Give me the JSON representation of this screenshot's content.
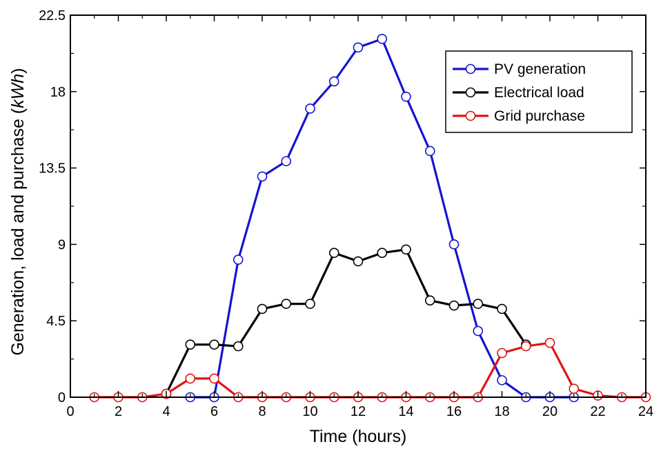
{
  "chart_data": {
    "type": "line",
    "xlabel": "Time (hours)",
    "ylabel": {
      "main": "Generation, load and purchase (",
      "unit": "kWh",
      "close": ")"
    },
    "xlim": [
      0,
      24
    ],
    "ylim": [
      0,
      22.5
    ],
    "xticks": [
      "0",
      "2",
      "4",
      "6",
      "8",
      "10",
      "12",
      "14",
      "16",
      "18",
      "20",
      "22",
      "24"
    ],
    "yticks": [
      "0",
      "4.5",
      "9",
      "13.5",
      "18",
      "22.5"
    ],
    "grid": false,
    "legend_position": "top-right",
    "series": [
      {
        "name": "PV generation",
        "color": "#1414d2",
        "points": [
          [
            5,
            0
          ],
          [
            6,
            0
          ],
          [
            7,
            8.1
          ],
          [
            8,
            13
          ],
          [
            9,
            13.9
          ],
          [
            10,
            17
          ],
          [
            11,
            18.6
          ],
          [
            12,
            20.6
          ],
          [
            13,
            21.1
          ],
          [
            14,
            17.7
          ],
          [
            15,
            14.5
          ],
          [
            16,
            9
          ],
          [
            17,
            3.9
          ],
          [
            18,
            1
          ],
          [
            19,
            0
          ],
          [
            20,
            0
          ],
          [
            21,
            0
          ]
        ]
      },
      {
        "name": "Electrical load",
        "color": "#000000",
        "points": [
          [
            4,
            0.2
          ],
          [
            5,
            3.1
          ],
          [
            6,
            3.1
          ],
          [
            7,
            3
          ],
          [
            8,
            5.2
          ],
          [
            9,
            5.5
          ],
          [
            10,
            5.5
          ],
          [
            11,
            8.5
          ],
          [
            12,
            8
          ],
          [
            13,
            8.5
          ],
          [
            14,
            8.7
          ],
          [
            15,
            5.7
          ],
          [
            16,
            5.4
          ],
          [
            17,
            5.5
          ],
          [
            18,
            5.2
          ],
          [
            19,
            3.1
          ]
        ]
      },
      {
        "name": "Grid purchase",
        "color": "#e11414",
        "points": [
          [
            1,
            0
          ],
          [
            2,
            0
          ],
          [
            3,
            0
          ],
          [
            4,
            0.2
          ],
          [
            5,
            1.1
          ],
          [
            6,
            1.1
          ],
          [
            7,
            0
          ],
          [
            8,
            0
          ],
          [
            9,
            0
          ],
          [
            10,
            0
          ],
          [
            11,
            0
          ],
          [
            12,
            0
          ],
          [
            13,
            0
          ],
          [
            14,
            0
          ],
          [
            15,
            0
          ],
          [
            16,
            0
          ],
          [
            17,
            0
          ],
          [
            18,
            2.6
          ],
          [
            19,
            3
          ],
          [
            20,
            3.2
          ],
          [
            21,
            0.5
          ],
          [
            22,
            0.1
          ],
          [
            23,
            0
          ],
          [
            24,
            0
          ]
        ]
      }
    ]
  }
}
